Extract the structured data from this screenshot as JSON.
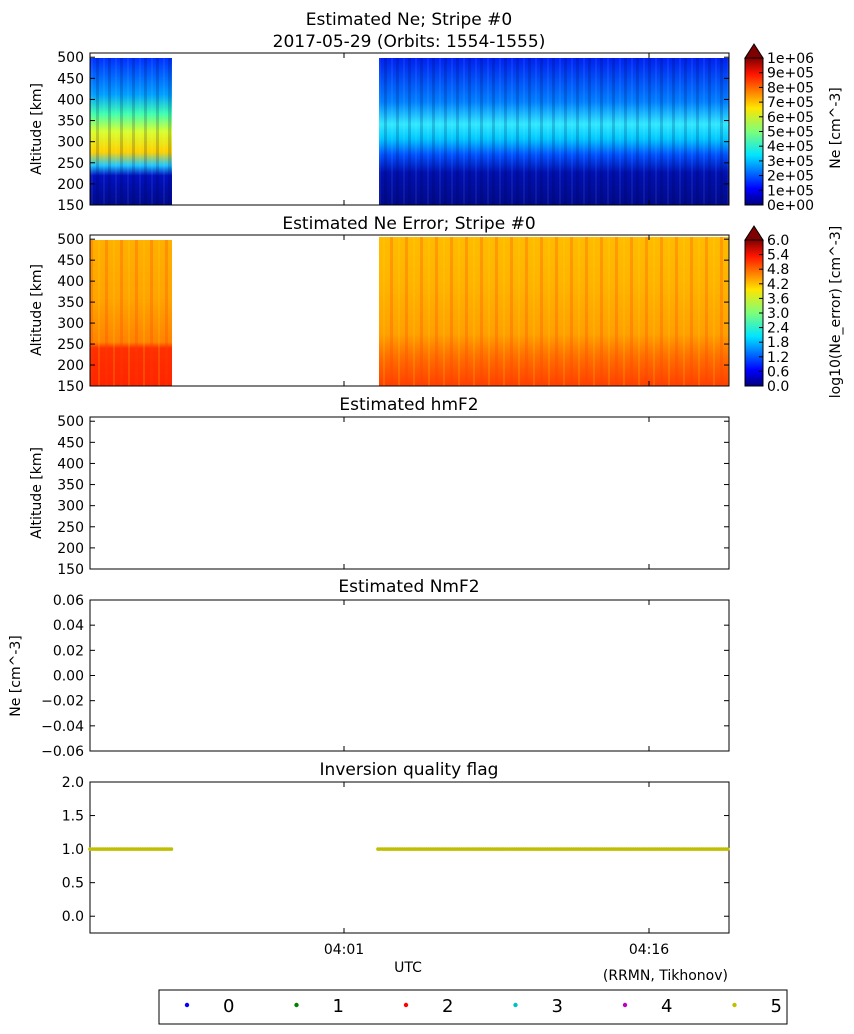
{
  "chart_data": [
    {
      "type": "heatmap",
      "title": "Estimated Ne; Stripe #0",
      "subtitle": "2017-05-29 (Orbits: 1554-1555)",
      "ylabel": "Altitude [km]",
      "yticks": [
        "150",
        "200",
        "250",
        "300",
        "350",
        "400",
        "450",
        "500"
      ],
      "ylim": [
        150,
        510
      ],
      "colorbar": {
        "label": "Ne [cm^-3]",
        "ticks": [
          "0e+00",
          "1e+05",
          "2e+05",
          "3e+05",
          "4e+05",
          "5e+05",
          "6e+05",
          "7e+05",
          "8e+05",
          "9e+05",
          "1e+06"
        ],
        "range": [
          0,
          1000000
        ],
        "colormap": "jet"
      },
      "data_segments_utc": [
        [
          "03:50",
          "03:54"
        ],
        [
          "04:04",
          "04:20"
        ]
      ],
      "peak_altitude_km": 310
    },
    {
      "type": "heatmap",
      "title": "Estimated Ne Error; Stripe #0",
      "ylabel": "Altitude [km]",
      "yticks": [
        "150",
        "200",
        "250",
        "300",
        "350",
        "400",
        "450",
        "500"
      ],
      "ylim": [
        150,
        510
      ],
      "colorbar": {
        "label": "log10(Ne_error) [cm^-3]",
        "ticks": [
          "0.0",
          "0.6",
          "1.2",
          "1.8",
          "2.4",
          "3.0",
          "3.6",
          "4.2",
          "4.8",
          "5.4",
          "6.0"
        ],
        "range": [
          0,
          6
        ],
        "colormap": "jet"
      },
      "data_segments_utc": [
        [
          "03:50",
          "03:54"
        ],
        [
          "04:04",
          "04:20"
        ]
      ]
    },
    {
      "type": "scatter",
      "title": "Estimated hmF2",
      "ylabel": "Altitude [km]",
      "yticks": [
        "150",
        "200",
        "250",
        "300",
        "350",
        "400",
        "450",
        "500"
      ],
      "ylim": [
        150,
        510
      ],
      "series": []
    },
    {
      "type": "scatter",
      "title": "Estimated NmF2",
      "ylabel": "Ne [cm^-3]",
      "yticks": [
        "0.06",
        "0.04",
        "0.02",
        "0.00",
        "−0.02",
        "−0.04",
        "−0.06"
      ],
      "ylim": [
        -0.06,
        0.06
      ],
      "series": []
    },
    {
      "type": "scatter",
      "title": "Inversion quality flag",
      "xlabel": "UTC",
      "xticks": [
        "04:01",
        "04:16"
      ],
      "yticks": [
        "2.0",
        "1.5",
        "1.0",
        "0.5",
        "0.0"
      ],
      "ylim": [
        -0.25,
        2.0
      ],
      "series": [
        {
          "name": "5",
          "color": "#bfbf00",
          "y": 1.0,
          "x_segments_utc": [
            [
              "03:50",
              "03:54"
            ],
            [
              "04:02",
              "04:20"
            ]
          ]
        }
      ]
    }
  ],
  "legend": {
    "items": [
      {
        "label": "0",
        "color": "#0000ff"
      },
      {
        "label": "1",
        "color": "#008000"
      },
      {
        "label": "2",
        "color": "#ff0000"
      },
      {
        "label": "3",
        "color": "#00bfbf"
      },
      {
        "label": "4",
        "color": "#bf00bf"
      },
      {
        "label": "5",
        "color": "#bfbf00"
      }
    ]
  },
  "footer": {
    "credit": "(RRMN, Tikhonov)"
  }
}
